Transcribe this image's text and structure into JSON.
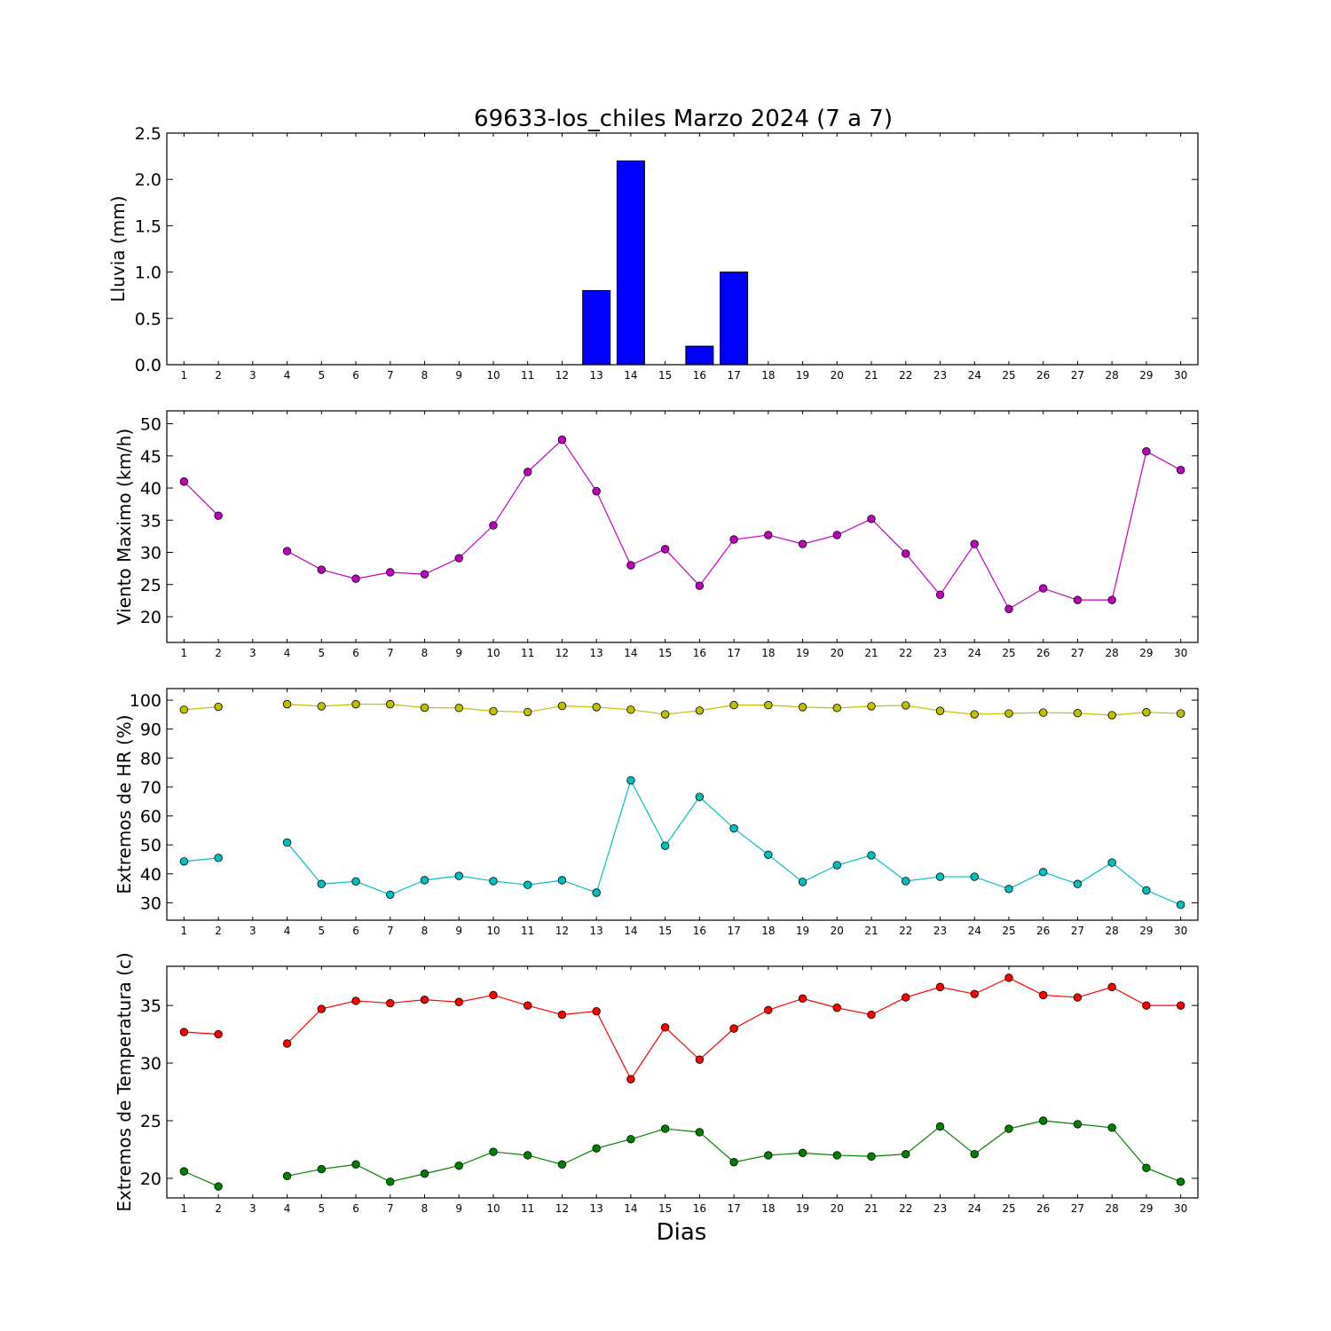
{
  "figure": {
    "title": "69633-los_chiles Marzo 2024  (7 a 7)",
    "xlabel": "Dias"
  },
  "colors": {
    "rain": "#0000ff",
    "wind": "#bf00bf",
    "hr_max": "#bfbf00",
    "hr_min": "#00bfbf",
    "temp_max": "#ff0000",
    "temp_min": "#008000"
  },
  "chart_data": [
    {
      "type": "bar",
      "ylabel": "Lluvia (mm)",
      "ylim": [
        0,
        2.5
      ],
      "yticks": [
        "0.0",
        "0.5",
        "1.0",
        "1.5",
        "2.0",
        "2.5"
      ],
      "categories": [
        "1",
        "2",
        "3",
        "4",
        "5",
        "6",
        "7",
        "8",
        "9",
        "10",
        "11",
        "12",
        "13",
        "14",
        "15",
        "16",
        "17",
        "18",
        "19",
        "20",
        "21",
        "22",
        "23",
        "24",
        "25",
        "26",
        "27",
        "28",
        "29",
        "30"
      ],
      "values": [
        0,
        0,
        0,
        0,
        0,
        0,
        0,
        0,
        0,
        0,
        0,
        0,
        0.8,
        2.2,
        0,
        0.2,
        1.0,
        0,
        0,
        0,
        0,
        0,
        0,
        0,
        0,
        0,
        0,
        0,
        0,
        0
      ],
      "grid": false
    },
    {
      "type": "line",
      "ylabel": "Viento Maximo (km/h)",
      "ylim": [
        16,
        52
      ],
      "yticks": [
        "20",
        "25",
        "30",
        "35",
        "40",
        "45",
        "50"
      ],
      "categories": [
        "1",
        "2",
        "3",
        "4",
        "5",
        "6",
        "7",
        "8",
        "9",
        "10",
        "11",
        "12",
        "13",
        "14",
        "15",
        "16",
        "17",
        "18",
        "19",
        "20",
        "21",
        "22",
        "23",
        "24",
        "25",
        "26",
        "27",
        "28",
        "29",
        "30"
      ],
      "series": [
        {
          "values": [
            41.0,
            35.7,
            null,
            30.2,
            27.3,
            25.9,
            26.9,
            26.6,
            29.1,
            34.2,
            42.5,
            47.5,
            39.5,
            28.0,
            30.5,
            24.8,
            32.0,
            32.7,
            31.3,
            32.7,
            35.2,
            29.8,
            23.4,
            31.3,
            21.2,
            24.4,
            22.6,
            22.6,
            45.7,
            42.8
          ]
        }
      ],
      "grid": false
    },
    {
      "type": "line",
      "ylabel": "Extremos de HR (%)",
      "ylim": [
        24,
        104
      ],
      "yticks": [
        "30",
        "40",
        "50",
        "60",
        "70",
        "80",
        "90",
        "100"
      ],
      "categories": [
        "1",
        "2",
        "3",
        "4",
        "5",
        "6",
        "7",
        "8",
        "9",
        "10",
        "11",
        "12",
        "13",
        "14",
        "15",
        "16",
        "17",
        "18",
        "19",
        "20",
        "21",
        "22",
        "23",
        "24",
        "25",
        "26",
        "27",
        "28",
        "29",
        "30"
      ],
      "series": [
        {
          "values": [
            96.7,
            97.7,
            null,
            98.6,
            97.9,
            98.6,
            98.6,
            97.4,
            97.3,
            96.2,
            95.9,
            98.0,
            97.6,
            96.7,
            95.1,
            96.4,
            98.3,
            98.3,
            97.6,
            97.3,
            97.9,
            98.2,
            96.3,
            95.1,
            95.4,
            95.7,
            95.5,
            94.8,
            95.8,
            95.4
          ]
        },
        {
          "values": [
            44.3,
            45.5,
            null,
            50.8,
            36.5,
            37.4,
            32.8,
            37.8,
            39.3,
            37.5,
            36.2,
            37.8,
            33.5,
            72.3,
            49.7,
            66.6,
            55.7,
            46.6,
            37.2,
            43.0,
            46.4,
            37.5,
            39.0,
            39.0,
            34.8,
            40.6,
            36.5,
            43.9,
            34.3,
            29.3
          ]
        }
      ],
      "grid": false
    },
    {
      "type": "line",
      "ylabel": "Extremos de Temperatura (c)",
      "ylim": [
        18.3,
        38.4
      ],
      "yticks": [
        "20",
        "25",
        "30",
        "35"
      ],
      "categories": [
        "1",
        "2",
        "3",
        "4",
        "5",
        "6",
        "7",
        "8",
        "9",
        "10",
        "11",
        "12",
        "13",
        "14",
        "15",
        "16",
        "17",
        "18",
        "19",
        "20",
        "21",
        "22",
        "23",
        "24",
        "25",
        "26",
        "27",
        "28",
        "29",
        "30"
      ],
      "series": [
        {
          "values": [
            32.7,
            32.5,
            null,
            31.7,
            34.7,
            35.4,
            35.2,
            35.5,
            35.3,
            35.9,
            35.0,
            34.2,
            34.5,
            28.6,
            33.1,
            30.3,
            33.0,
            34.6,
            35.6,
            34.8,
            34.2,
            35.7,
            36.6,
            36.0,
            37.4,
            35.9,
            35.7,
            36.6,
            35.0,
            35.0
          ]
        },
        {
          "values": [
            20.6,
            19.3,
            null,
            20.2,
            20.8,
            21.2,
            19.7,
            20.4,
            21.1,
            22.3,
            22.0,
            21.2,
            22.6,
            23.4,
            24.3,
            24.0,
            21.4,
            22.0,
            22.2,
            22.0,
            21.9,
            22.1,
            24.5,
            22.1,
            24.3,
            25.0,
            24.7,
            24.4,
            20.9,
            19.7
          ]
        }
      ],
      "grid": false
    }
  ]
}
